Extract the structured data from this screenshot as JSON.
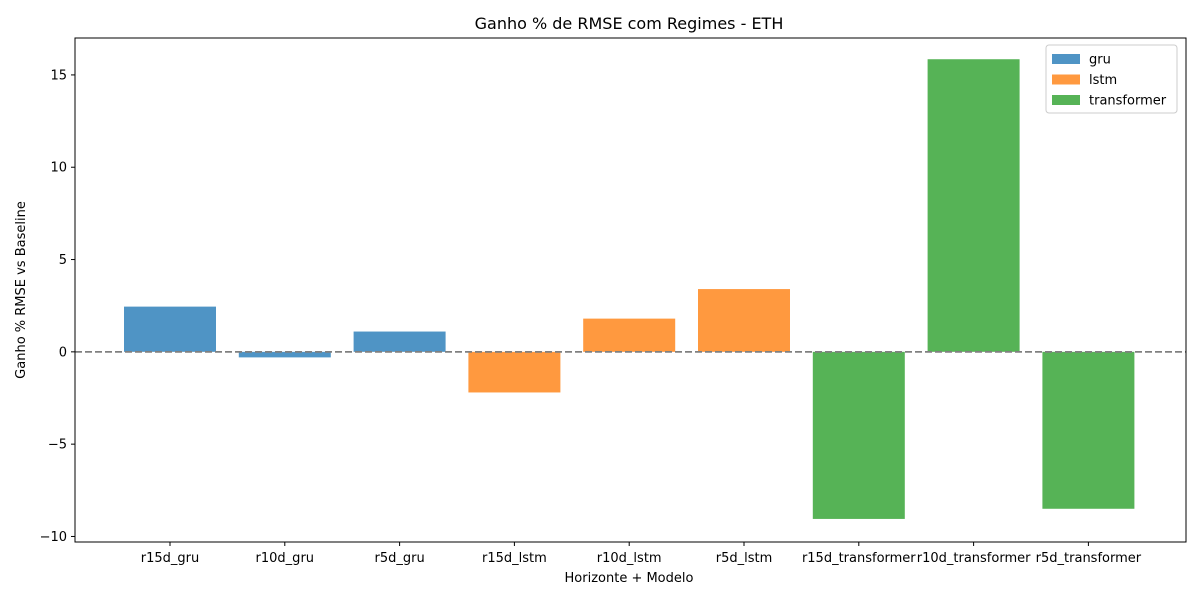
{
  "chart_data": {
    "type": "bar",
    "title": "Ganho % de RMSE com Regimes - ETH",
    "xlabel": "Horizonte + Modelo",
    "ylabel": "Ganho % RMSE vs Baseline",
    "ylim": [
      -10.3,
      17.0
    ],
    "yticks": [
      -10,
      -5,
      0,
      5,
      10,
      15
    ],
    "ytick_labels": [
      "−10",
      "−5",
      "0",
      "5",
      "10",
      "15"
    ],
    "categories": [
      "r15d_gru",
      "r10d_gru",
      "r5d_gru",
      "r15d_lstm",
      "r10d_lstm",
      "r5d_lstm",
      "r15d_transformer",
      "r10d_transformer",
      "r5d_transformer"
    ],
    "values": [
      2.45,
      -0.3,
      1.1,
      -2.2,
      1.8,
      3.4,
      -9.05,
      15.85,
      -8.5
    ],
    "bar_series": [
      "gru",
      "gru",
      "gru",
      "lstm",
      "lstm",
      "lstm",
      "transformer",
      "transformer",
      "transformer"
    ],
    "baseline": 0,
    "grid": false,
    "legend_position": "top-right",
    "series": [
      {
        "name": "gru",
        "color": "#4f94c5"
      },
      {
        "name": "lstm",
        "color": "#ff993f"
      },
      {
        "name": "transformer",
        "color": "#56b356"
      }
    ]
  }
}
